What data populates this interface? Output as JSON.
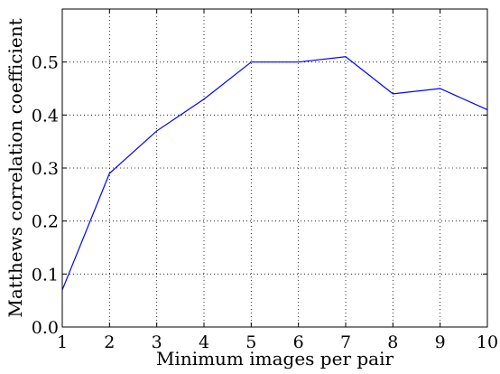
{
  "chart_data": {
    "type": "line",
    "xlabel": "Minimum images per pair",
    "ylabel": "Matthews correlation coefficient",
    "xlim": [
      1,
      10
    ],
    "ylim": [
      0,
      0.6
    ],
    "xticks": [
      1,
      2,
      3,
      4,
      5,
      6,
      7,
      8,
      9,
      10
    ],
    "yticks": [
      0.0,
      0.1,
      0.2,
      0.3,
      0.4,
      0.5
    ],
    "ytick_labels": [
      "0.0",
      "0.1",
      "0.2",
      "0.3",
      "0.4",
      "0.5"
    ],
    "grid": true,
    "grid_style": "dotted",
    "series": [
      {
        "color": "#0000ff",
        "x": [
          1,
          2,
          3,
          4,
          5,
          6,
          7,
          8,
          9,
          10
        ],
        "y": [
          0.07,
          0.29,
          0.37,
          0.43,
          0.5,
          0.5,
          0.51,
          0.44,
          0.45,
          0.41
        ]
      }
    ]
  }
}
